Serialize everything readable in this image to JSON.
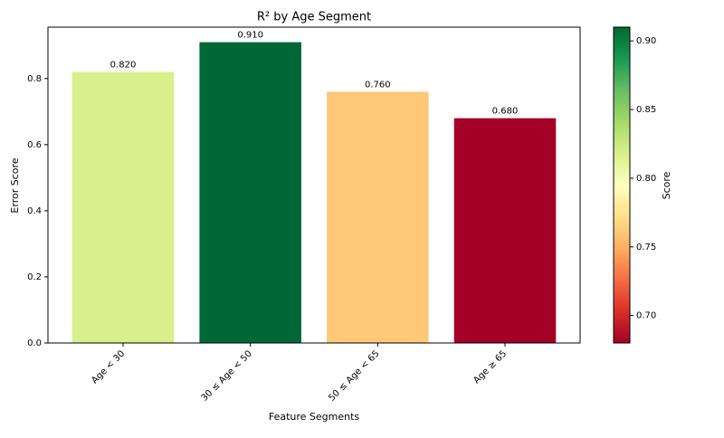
{
  "chart_data": {
    "type": "bar",
    "title": "R² by Age Segment",
    "x_label": "Feature Segments",
    "y_label": "Error Score",
    "categories": [
      "Age < 30",
      "30 ≤ Age < 50",
      "50 ≤ Age < 65",
      "Age ≥ 65"
    ],
    "values": [
      0.82,
      0.91,
      0.76,
      0.68
    ],
    "value_labels": [
      "0.820",
      "0.910",
      "0.760",
      "0.680"
    ],
    "colors": [
      "#d9ef8b",
      "#006837",
      "#fec878",
      "#a50026"
    ],
    "ylim": [
      0,
      0.9555
    ],
    "yticks": [
      {
        "value": 0,
        "label": "0.0"
      },
      0.2,
      0.4,
      0.6,
      0.8
    ],
    "colorbar": {
      "label": "Score",
      "lim": [
        0.68,
        0.91
      ],
      "ticks": [
        {
          "value": 0.7,
          "label": "0.70"
        },
        0.75,
        {
          "value": 0.8,
          "label": "0.80"
        },
        0.85,
        {
          "value": 0.9,
          "label": "0.90"
        }
      ]
    }
  }
}
